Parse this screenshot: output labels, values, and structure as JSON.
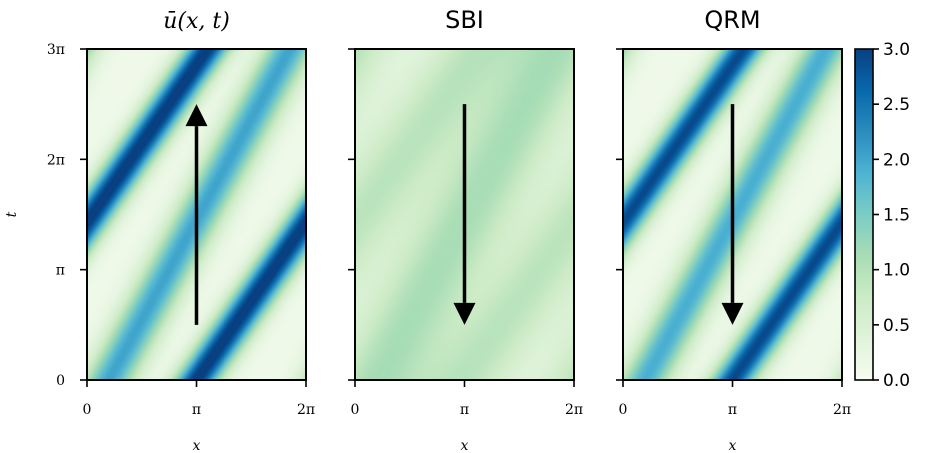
{
  "chart_data": {
    "type": "heatmap",
    "colormap": "GnBu",
    "x_ticks": [
      "0",
      "π",
      "2π"
    ],
    "y_ticks": [
      "0",
      "π",
      "2π",
      "3π"
    ],
    "xlabel": "x",
    "ylabel": "t",
    "xlim_over_pi": [
      0,
      2
    ],
    "ylim_over_pi": [
      0,
      3
    ],
    "panels": [
      {
        "title": "ū(x, t)",
        "title_style": "serif-italic",
        "arrow_direction": "up",
        "arrow_t_over_pi": [
          0.5,
          2.5
        ],
        "bands": [
          {
            "x0_over_pi": 1.0,
            "slope_x_per_t": 0.7,
            "peak": 3.0,
            "width_over_pi": 0.14
          },
          {
            "x0_over_pi": 0.2,
            "slope_x_per_t": 0.55,
            "peak": 1.9,
            "width_over_pi": 0.16
          }
        ]
      },
      {
        "title": "SBI",
        "title_style": "sans",
        "arrow_direction": "down",
        "arrow_t_over_pi": [
          2.5,
          0.5
        ],
        "bands": [
          {
            "x0_over_pi": 1.0,
            "slope_x_per_t": 0.7,
            "peak": 0.8,
            "width_over_pi": 0.3
          },
          {
            "x0_over_pi": 0.2,
            "slope_x_per_t": 0.55,
            "peak": 1.0,
            "width_over_pi": 0.32
          }
        ]
      },
      {
        "title": "QRM",
        "title_style": "sans",
        "arrow_direction": "down",
        "arrow_t_over_pi": [
          2.5,
          0.5
        ],
        "bands": [
          {
            "x0_over_pi": 1.0,
            "slope_x_per_t": 0.7,
            "peak": 2.8,
            "width_over_pi": 0.14
          },
          {
            "x0_over_pi": 0.2,
            "slope_x_per_t": 0.55,
            "peak": 1.8,
            "width_over_pi": 0.16
          }
        ]
      }
    ],
    "colorbar": {
      "min": 0,
      "max": 3,
      "ticks": [
        "0.0",
        "0.5",
        "1.0",
        "1.5",
        "2.0",
        "2.5",
        "3.0"
      ]
    }
  }
}
